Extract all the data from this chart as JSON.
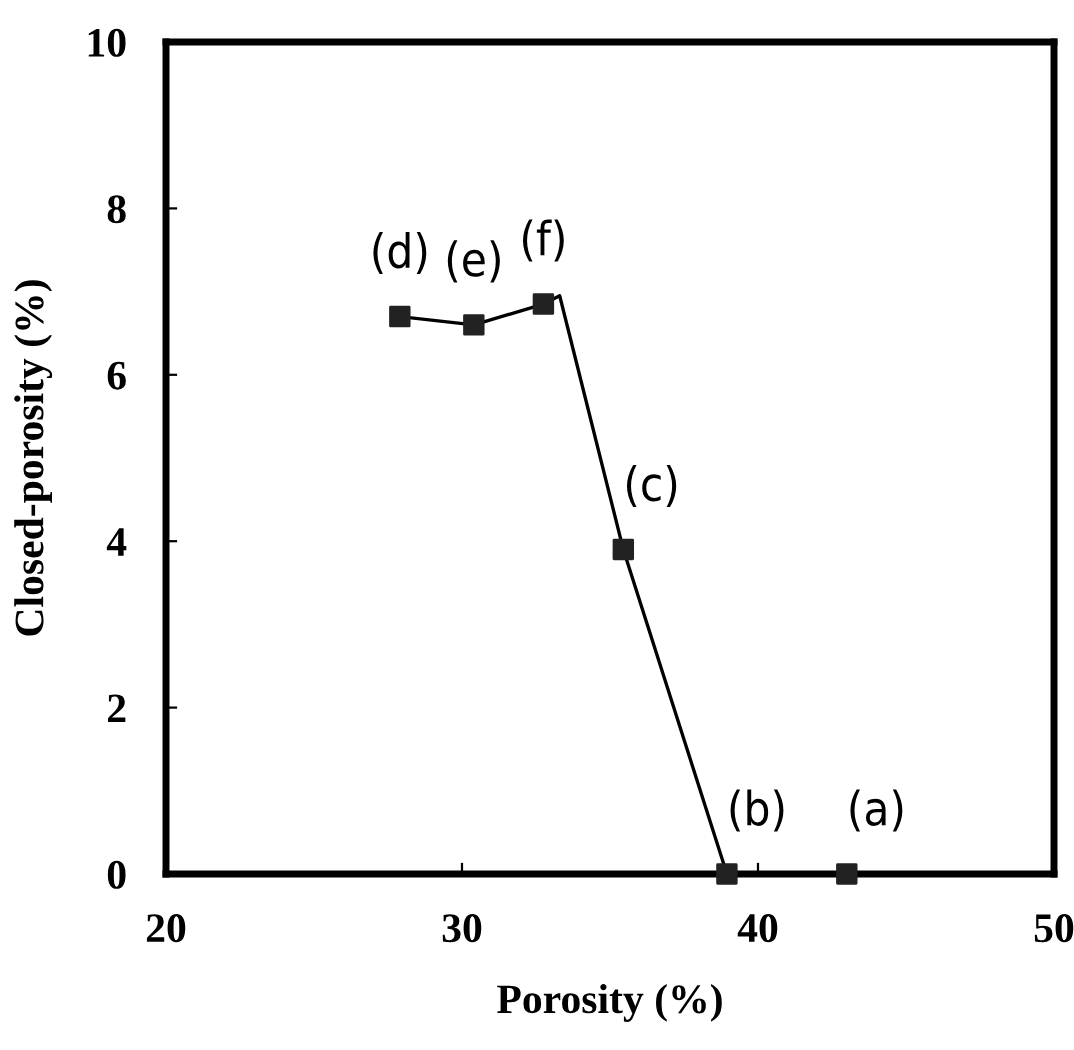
{
  "chart_data": {
    "type": "line",
    "xlabel": "Porosity (%)",
    "ylabel": "Closed-porosity (%)",
    "xlim": [
      20,
      50
    ],
    "xticks": [
      20,
      30,
      40,
      50
    ],
    "ylim": [
      0,
      10
    ],
    "yticks": [
      0,
      2,
      4,
      6,
      8,
      10
    ],
    "grid": false,
    "legend": false,
    "series": [
      {
        "color": "#000000",
        "marker": "none",
        "line_style": "solid",
        "x": [
          27.9,
          30.4,
          32.75,
          33.3,
          35.45,
          38.95
        ],
        "values": [
          6.7,
          6.6,
          6.85,
          6.95,
          3.9,
          0
        ]
      },
      {
        "type": "scatter",
        "color": "#222222",
        "marker": "square",
        "x": [
          27.9,
          30.4,
          32.75,
          35.45,
          38.95,
          43.0
        ],
        "values": [
          6.7,
          6.6,
          6.85,
          3.9,
          0,
          0
        ]
      }
    ],
    "annotations": [
      {
        "text": "(d)",
        "x": 27.9,
        "y": 6.7
      },
      {
        "text": "(e)",
        "x": 30.4,
        "y": 6.6
      },
      {
        "text": "(f)",
        "x": 32.75,
        "y": 6.85
      },
      {
        "text": "(c)",
        "x": 35.45,
        "y": 3.9
      },
      {
        "text": "(b)",
        "x": 38.95,
        "y": 0
      },
      {
        "text": "(a)",
        "x": 43.0,
        "y": 0
      }
    ]
  }
}
